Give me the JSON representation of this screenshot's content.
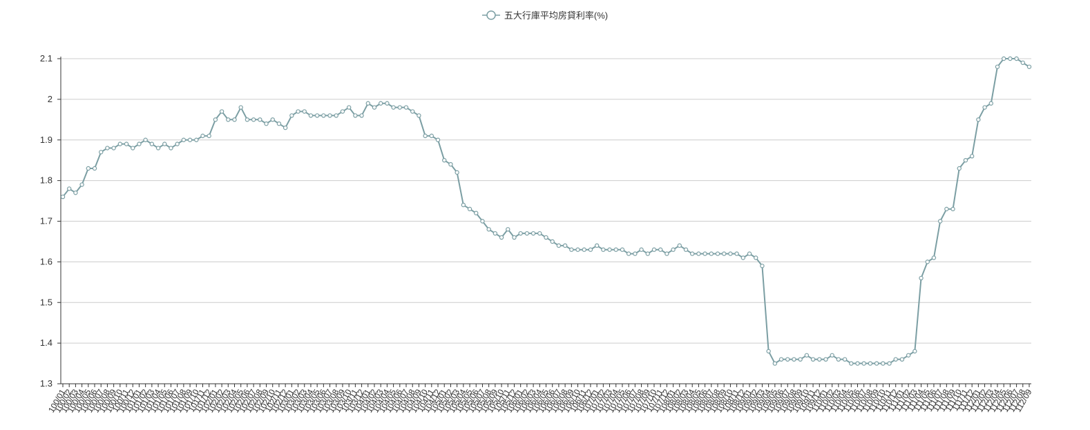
{
  "legend": {
    "label": "五大行庫平均房貸利率(%)"
  },
  "colors": {
    "series": "#7b9ea3",
    "grid": "#cccccc",
    "axis": "#333333",
    "text": "#333333"
  },
  "chart_data": {
    "type": "line",
    "title": "",
    "xlabel": "",
    "ylabel": "",
    "ylim": [
      1.3,
      2.1
    ],
    "yticks": [
      1.3,
      1.4,
      1.5,
      1.6,
      1.7,
      1.8,
      1.9,
      2,
      2.1
    ],
    "grid": true,
    "legend_position": "top-center",
    "categories": [
      "100/01",
      "100/02",
      "100/03",
      "100/04",
      "100/05",
      "100/06",
      "100/07",
      "100/08",
      "100/09",
      "100/10",
      "100/11",
      "100/12",
      "101/01",
      "101/02",
      "101/03",
      "101/04",
      "101/05",
      "101/06",
      "101/07",
      "101/08",
      "101/09",
      "101/10",
      "101/11",
      "101/12",
      "102/01",
      "102/02",
      "102/03",
      "102/04",
      "102/05",
      "102/06",
      "102/07",
      "102/08",
      "102/09",
      "102/10",
      "102/11",
      "102/12",
      "103/01",
      "103/02",
      "103/03",
      "103/04",
      "103/05",
      "103/06",
      "103/07",
      "103/08",
      "103/09",
      "103/10",
      "103/11",
      "103/12",
      "104/01",
      "104/02",
      "104/03",
      "104/04",
      "104/05",
      "104/06",
      "104/07",
      "104/08",
      "104/09",
      "104/10",
      "104/11",
      "104/12",
      "105/01",
      "105/02",
      "105/03",
      "105/04",
      "105/05",
      "105/06",
      "105/07",
      "105/08",
      "105/09",
      "105/10",
      "105/11",
      "105/12",
      "106/01",
      "106/02",
      "106/03",
      "106/04",
      "106/05",
      "106/06",
      "106/07",
      "106/08",
      "106/09",
      "106/10",
      "106/11",
      "106/12",
      "107/01",
      "107/02",
      "107/03",
      "107/04",
      "107/05",
      "107/06",
      "107/07",
      "107/08",
      "107/09",
      "107/10",
      "107/11",
      "107/12",
      "108/01",
      "108/02",
      "108/03",
      "108/04",
      "108/05",
      "108/06",
      "108/07",
      "108/08",
      "108/09",
      "108/10",
      "108/11",
      "108/12",
      "109/01",
      "109/02",
      "109/03",
      "109/04",
      "109/05",
      "109/06",
      "109/07",
      "109/08",
      "109/09",
      "109/10",
      "109/11",
      "109/12",
      "110/01",
      "110/02",
      "110/03",
      "110/04",
      "110/05",
      "110/06",
      "110/07",
      "110/08",
      "110/09",
      "110/10",
      "110/11",
      "110/12",
      "111/01",
      "111/02",
      "111/03",
      "111/04",
      "111/05",
      "111/06",
      "111/07",
      "111/08",
      "111/09",
      "111/10",
      "111/11",
      "111/12",
      "112/01",
      "112/02",
      "112/03",
      "112/04",
      "112/05",
      "112/06",
      "112/07",
      "112/08",
      "112/09"
    ],
    "series": [
      {
        "name": "五大行庫平均房貸利率(%)",
        "values": [
          1.76,
          1.78,
          1.77,
          1.79,
          1.83,
          1.83,
          1.87,
          1.88,
          1.88,
          1.89,
          1.89,
          1.88,
          1.89,
          1.9,
          1.89,
          1.88,
          1.89,
          1.88,
          1.89,
          1.9,
          1.9,
          1.9,
          1.91,
          1.91,
          1.95,
          1.97,
          1.95,
          1.95,
          1.98,
          1.95,
          1.95,
          1.95,
          1.94,
          1.95,
          1.94,
          1.93,
          1.96,
          1.97,
          1.97,
          1.96,
          1.96,
          1.96,
          1.96,
          1.96,
          1.97,
          1.98,
          1.96,
          1.96,
          1.99,
          1.98,
          1.99,
          1.99,
          1.98,
          1.98,
          1.98,
          1.97,
          1.96,
          1.91,
          1.91,
          1.9,
          1.85,
          1.84,
          1.82,
          1.74,
          1.73,
          1.72,
          1.7,
          1.68,
          1.67,
          1.66,
          1.68,
          1.66,
          1.67,
          1.67,
          1.67,
          1.67,
          1.66,
          1.65,
          1.64,
          1.64,
          1.63,
          1.63,
          1.63,
          1.63,
          1.64,
          1.63,
          1.63,
          1.63,
          1.63,
          1.62,
          1.62,
          1.63,
          1.62,
          1.63,
          1.63,
          1.62,
          1.63,
          1.64,
          1.63,
          1.62,
          1.62,
          1.62,
          1.62,
          1.62,
          1.62,
          1.62,
          1.62,
          1.61,
          1.62,
          1.61,
          1.59,
          1.38,
          1.35,
          1.36,
          1.36,
          1.36,
          1.36,
          1.37,
          1.36,
          1.36,
          1.36,
          1.37,
          1.36,
          1.36,
          1.35,
          1.35,
          1.35,
          1.35,
          1.35,
          1.35,
          1.35,
          1.36,
          1.36,
          1.37,
          1.38,
          1.56,
          1.6,
          1.61,
          1.7,
          1.73,
          1.73,
          1.83,
          1.85,
          1.86,
          1.95,
          1.98,
          1.99,
          2.08,
          2.1,
          2.1,
          2.1,
          2.09,
          2.08
        ]
      }
    ]
  }
}
